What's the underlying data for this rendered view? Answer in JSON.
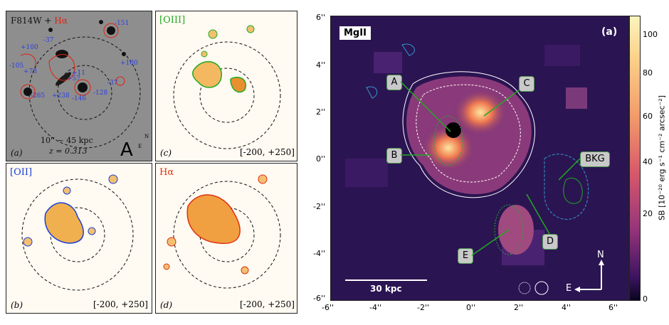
{
  "panel_a": {
    "title_prefix": "F814W + ",
    "title_suffix": "Hα",
    "tag": "(a)",
    "scale": "10'' ~ 45 kpc",
    "redshift": "z = 0.313",
    "cluster": "A",
    "north": "N",
    "east": "E",
    "vel_labels": [
      "-151",
      "+100",
      "-105",
      "-37",
      "+78",
      "+11",
      "+100",
      "+57",
      "-128",
      "-37",
      "-265",
      "+238",
      "-146"
    ]
  },
  "panel_b": {
    "title": "[OII]",
    "tag": "(b)",
    "range": "[-200, +250]"
  },
  "panel_c": {
    "title": "[OIII]",
    "tag": "(c)",
    "range": "[-200, +250]"
  },
  "panel_d": {
    "title": "Hα",
    "tag": "(d)",
    "range": "[-200, +250]"
  },
  "mgii": {
    "label": "MgII",
    "tag": "(a)",
    "callouts": [
      "A",
      "B",
      "C",
      "D",
      "E",
      "BKG"
    ],
    "scalebar": "30 kpc",
    "north": "N",
    "east": "E",
    "x_ticks": [
      "-6''",
      "-4''",
      "-2''",
      "0''",
      "2''",
      "4''",
      "6''"
    ],
    "y_ticks": [
      "6''",
      "4''",
      "2''",
      "0''",
      "-2''",
      "-4''",
      "-6''"
    ],
    "colorbar_ticks": [
      "100",
      "80",
      "60",
      "40",
      "20",
      "0"
    ],
    "colorbar_label": "SB [10⁻²⁰ erg s⁻¹ cm⁻² arcsec⁻²]"
  },
  "colors": {
    "oii": "#1a3fd6",
    "oiii": "#22aa22",
    "halpha": "#e03010",
    "cyan": "#3399cc"
  }
}
